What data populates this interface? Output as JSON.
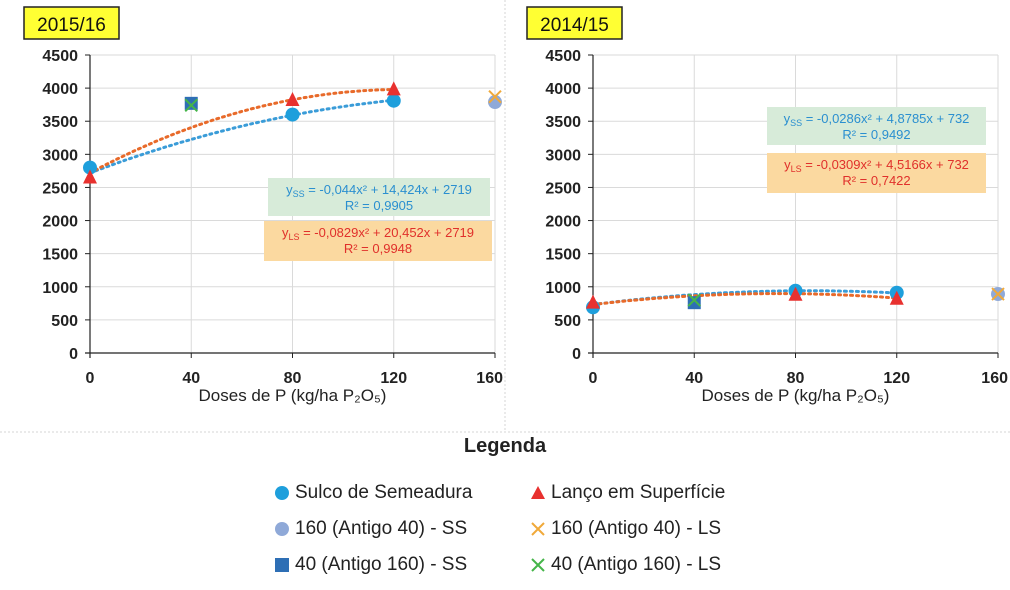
{
  "colors": {
    "ss": "#1E9FDC",
    "ls": "#E8312F",
    "ss_trend": "#3A9CD8",
    "ls_trend": "#E86A2A",
    "old40_ss": "#8FA9D8",
    "old40_ls": "#F0A93A",
    "old160_ss": "#2E6FB5",
    "old160_ls": "#45B549",
    "eq_ss_box": "#D7EBD9",
    "eq_ls_box": "#FBD9A0",
    "season_box": "#FFFF33"
  },
  "chart_data": [
    {
      "type": "scatter",
      "season_label": "2015/16",
      "xlabel": "Doses de P (kg/ha P₂O₅)",
      "ylabel": "",
      "xlim": [
        0,
        160
      ],
      "ylim": [
        0,
        4500
      ],
      "xticks": [
        "0",
        "40",
        "80",
        "120",
        "160"
      ],
      "yticks": [
        "0",
        "500",
        "1000",
        "1500",
        "2000",
        "2500",
        "3000",
        "3500",
        "4000",
        "4500"
      ],
      "series": [
        {
          "name": "Sulco de Semeadura",
          "marker": "circle",
          "x": [
            0,
            80,
            120
          ],
          "y": [
            2800,
            3600,
            3810
          ]
        },
        {
          "name": "Lanço em Superfície",
          "marker": "triangle",
          "x": [
            0,
            80,
            120
          ],
          "y": [
            2650,
            3820,
            3980
          ]
        },
        {
          "name": "160 (Antigo 40) - SS",
          "marker": "circle",
          "x": [
            160
          ],
          "y": [
            3790
          ]
        },
        {
          "name": "160 (Antigo 40) - LS",
          "marker": "x",
          "x": [
            160
          ],
          "y": [
            3870
          ]
        },
        {
          "name": "40 (Antigo 160) - SS",
          "marker": "square",
          "x": [
            40
          ],
          "y": [
            3770
          ]
        },
        {
          "name": "40 (Antigo 160) - LS",
          "marker": "x",
          "x": [
            40
          ],
          "y": [
            3740
          ]
        }
      ],
      "trendlines": [
        {
          "series": "Sulco de Semeadura",
          "a": -0.044,
          "b": 14.424,
          "c": 2719,
          "x_range": [
            0,
            120
          ]
        },
        {
          "series": "Lanço em Superfície",
          "a": -0.0829,
          "b": 20.452,
          "c": 2719,
          "x_range": [
            0,
            120
          ]
        }
      ],
      "equations": {
        "ss_prefix": "y",
        "ss_sub": "SS",
        "ss_rhs": " = -0,044x² + 14,424x + 2719",
        "ss_r2": "R² = 0,9905",
        "ls_prefix": "y",
        "ls_sub": "LS",
        "ls_rhs": " = -0,0829x² + 20,452x + 2719",
        "ls_r2": "R² = 0,9948"
      }
    },
    {
      "type": "scatter",
      "season_label": "2014/15",
      "xlabel": "Doses de P (kg/ha P₂O₅)",
      "ylabel": "",
      "xlim": [
        0,
        160
      ],
      "ylim": [
        0,
        4500
      ],
      "xticks": [
        "0",
        "40",
        "80",
        "120",
        "160"
      ],
      "yticks": [
        "0",
        "500",
        "1000",
        "1500",
        "2000",
        "2500",
        "3000",
        "3500",
        "4000",
        "4500"
      ],
      "series": [
        {
          "name": "Sulco de Semeadura",
          "marker": "circle",
          "x": [
            0,
            80,
            120
          ],
          "y": [
            690,
            940,
            910
          ]
        },
        {
          "name": "Lanço em Superfície",
          "marker": "triangle",
          "x": [
            0,
            80,
            120
          ],
          "y": [
            760,
            880,
            820
          ]
        },
        {
          "name": "160 (Antigo 40) - SS",
          "marker": "circle",
          "x": [
            160
          ],
          "y": [
            890
          ]
        },
        {
          "name": "160 (Antigo 40) - LS",
          "marker": "x",
          "x": [
            160
          ],
          "y": [
            890
          ]
        },
        {
          "name": "40 (Antigo 160) - SS",
          "marker": "square",
          "x": [
            40
          ],
          "y": [
            760
          ]
        },
        {
          "name": "40 (Antigo 160) - LS",
          "marker": "x",
          "x": [
            40
          ],
          "y": [
            800
          ]
        }
      ],
      "trendlines": [
        {
          "series": "Sulco de Semeadura",
          "a": -0.0286,
          "b": 4.8785,
          "c": 732,
          "x_range": [
            0,
            120
          ]
        },
        {
          "series": "Lanço em Superfície",
          "a": -0.0309,
          "b": 4.5166,
          "c": 732,
          "x_range": [
            0,
            120
          ]
        }
      ],
      "equations": {
        "ss_prefix": "y",
        "ss_sub": "SS",
        "ss_rhs": " = -0,0286x² + 4,8785x + 732",
        "ss_r2": "R² = 0,9492",
        "ls_prefix": "y",
        "ls_sub": "LS",
        "ls_rhs": " = -0,0309x² + 4,5166x + 732",
        "ls_r2": "R² = 0,7422"
      }
    }
  ],
  "legend": {
    "title": "Legenda",
    "items": [
      {
        "label": "Sulco de Semeadura",
        "marker": "circle",
        "color_key": "ss"
      },
      {
        "label": "Lanço em Superfície",
        "marker": "triangle",
        "color_key": "ls"
      },
      {
        "label": "160 (Antigo 40) - SS",
        "marker": "circle",
        "color_key": "old40_ss"
      },
      {
        "label": "160 (Antigo 40) - LS",
        "marker": "x",
        "color_key": "old40_ls"
      },
      {
        "label": "40 (Antigo 160) - SS",
        "marker": "square",
        "color_key": "old160_ss"
      },
      {
        "label": "40 (Antigo 160) - LS",
        "marker": "x",
        "color_key": "old160_ls"
      }
    ]
  }
}
